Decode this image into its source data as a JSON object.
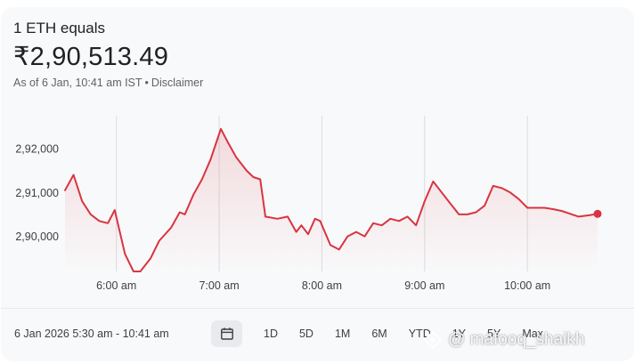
{
  "header": {
    "title": "1 ETH equals",
    "price": "₹2,90,513.49",
    "as_of": "As of 6 Jan, 10:41 am IST",
    "separator": "•",
    "disclaimer": "Disclaimer"
  },
  "chart_data": {
    "type": "area",
    "title": "",
    "xlabel": "",
    "ylabel": "",
    "x_ticks": [
      "6:00 am",
      "7:00 am",
      "8:00 am",
      "9:00 am",
      "10:00 am"
    ],
    "y_ticks": [
      "2,90,000",
      "2,91,000",
      "2,92,000"
    ],
    "y_tick_values": [
      290000,
      291000,
      292000
    ],
    "xlim": [
      "05:30",
      "10:41"
    ],
    "ylim": [
      289200,
      292750
    ],
    "grid": "vertical",
    "line_color": "#d93441",
    "series": [
      {
        "name": "",
        "x": [
          "05:30",
          "05:35",
          "05:40",
          "05:45",
          "05:50",
          "05:55",
          "05:59",
          "06:05",
          "06:10",
          "06:14",
          "06:20",
          "06:25",
          "06:32",
          "06:37",
          "06:40",
          "06:45",
          "06:50",
          "06:55",
          "06:58",
          "07:01",
          "07:05",
          "07:10",
          "07:16",
          "07:20",
          "07:24",
          "07:27",
          "07:34",
          "07:40",
          "07:45",
          "07:48",
          "07:52",
          "07:56",
          "07:59",
          "08:05",
          "08:10",
          "08:15",
          "08:20",
          "08:25",
          "08:30",
          "08:35",
          "08:40",
          "08:45",
          "08:50",
          "08:55",
          "09:00",
          "09:05",
          "09:10",
          "09:15",
          "09:20",
          "09:25",
          "09:30",
          "09:35",
          "09:40",
          "09:45",
          "09:50",
          "09:55",
          "10:00",
          "10:05",
          "10:10",
          "10:15",
          "10:20",
          "10:26",
          "10:30",
          "10:36",
          "10:41"
        ],
        "y": [
          291050,
          291400,
          290800,
          290500,
          290350,
          290300,
          290600,
          289600,
          289200,
          289200,
          289500,
          289900,
          290200,
          290550,
          290500,
          290950,
          291300,
          291750,
          292100,
          292450,
          292150,
          291800,
          291500,
          291350,
          291300,
          290450,
          290400,
          290450,
          290100,
          290250,
          290050,
          290400,
          290350,
          289800,
          289700,
          290000,
          290100,
          290000,
          290300,
          290250,
          290400,
          290350,
          290450,
          290250,
          290800,
          291250,
          291000,
          290750,
          290500,
          290500,
          290550,
          290700,
          291150,
          291100,
          291000,
          290850,
          290650,
          290650,
          290650,
          290620,
          290580,
          290500,
          290450,
          290480,
          290513
        ]
      }
    ]
  },
  "footer": {
    "date_range": "6 Jan 2026 5:30 am - 10:41 am",
    "ranges": [
      "1D",
      "5D",
      "1M",
      "6M",
      "YTD",
      "1Y",
      "5Y",
      "Max"
    ]
  },
  "watermark": "@ mafooq_shaikh"
}
